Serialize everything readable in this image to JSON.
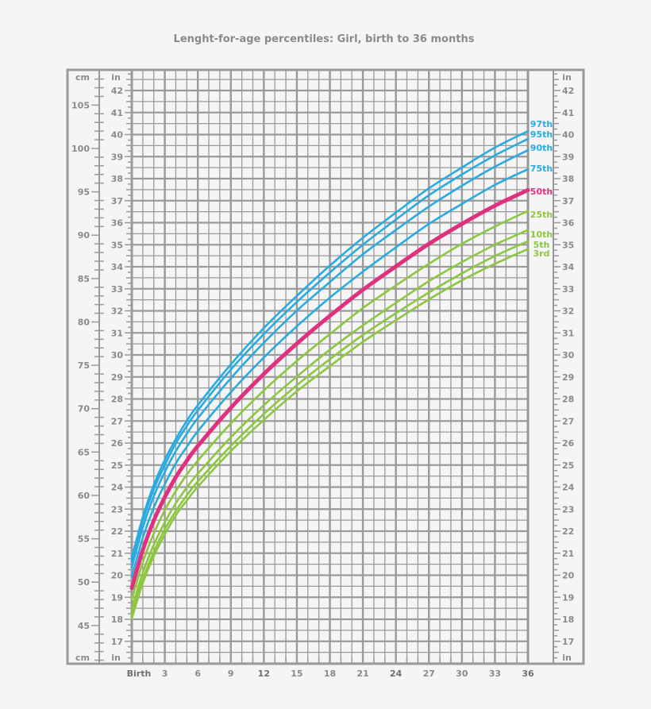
{
  "chart_data": {
    "type": "line",
    "title": "Lenght-for-age percentiles: Girl, birth to 36 months",
    "left_units": {
      "outer": "cm",
      "inner": "in"
    },
    "right_units": "in",
    "x_tick_labels": [
      "Birth",
      "3",
      "6",
      "9",
      "12",
      "15",
      "18",
      "21",
      "24",
      "27",
      "30",
      "33",
      "36"
    ],
    "x_range_months": [
      0,
      36
    ],
    "y_range_in": [
      16,
      43
    ],
    "cm_tick_labels": [
      "45",
      "50",
      "55",
      "60",
      "65",
      "70",
      "75",
      "80",
      "85",
      "90",
      "95",
      "100",
      "105"
    ],
    "in_tick_labels": [
      "17",
      "18",
      "19",
      "20",
      "21",
      "22",
      "23",
      "24",
      "25",
      "26",
      "27",
      "28",
      "29",
      "30",
      "31",
      "32",
      "33",
      "34",
      "35",
      "36",
      "37",
      "38",
      "39",
      "40",
      "41",
      "42"
    ],
    "grid": true,
    "x": [
      0,
      1,
      2,
      3,
      4,
      5,
      6,
      9,
      12,
      15,
      18,
      21,
      24,
      27,
      30,
      33,
      36
    ],
    "y_unit": "cm",
    "series": [
      {
        "name": "97th",
        "color": "#29abe2",
        "values": [
          52.8,
          57.5,
          61.2,
          64.1,
          66.5,
          68.6,
          70.4,
          75.1,
          79.3,
          83.0,
          86.5,
          89.7,
          92.6,
          95.4,
          97.8,
          100.1,
          102.0
        ]
      },
      {
        "name": "95th",
        "color": "#29abe2",
        "values": [
          52.4,
          57.1,
          60.7,
          63.5,
          66.0,
          68.0,
          69.8,
          74.5,
          78.6,
          82.3,
          85.7,
          88.9,
          91.8,
          94.6,
          97.0,
          99.2,
          101.1
        ]
      },
      {
        "name": "90th",
        "color": "#29abe2",
        "values": [
          51.7,
          56.3,
          59.9,
          62.7,
          65.1,
          67.1,
          68.9,
          73.5,
          77.6,
          81.3,
          84.6,
          87.8,
          90.6,
          93.3,
          95.7,
          97.9,
          99.8
        ]
      },
      {
        "name": "75th",
        "color": "#29abe2",
        "values": [
          50.6,
          55.1,
          58.6,
          61.3,
          63.7,
          65.6,
          67.4,
          71.9,
          75.9,
          79.5,
          82.8,
          85.8,
          88.6,
          91.3,
          93.6,
          95.8,
          97.6
        ]
      },
      {
        "name": "50th",
        "color": "#e0317e",
        "values": [
          49.3,
          53.7,
          57.1,
          59.8,
          62.1,
          64.0,
          65.7,
          70.1,
          74.0,
          77.5,
          80.7,
          83.7,
          86.4,
          89.0,
          91.3,
          93.4,
          95.2
        ]
      },
      {
        "name": "25th",
        "color": "#8dc63f",
        "values": [
          48.0,
          52.3,
          55.6,
          58.3,
          60.5,
          62.4,
          64.0,
          68.3,
          72.1,
          75.5,
          78.6,
          81.6,
          84.2,
          86.7,
          89.0,
          91.0,
          92.8
        ]
      },
      {
        "name": "10th",
        "color": "#8dc63f",
        "values": [
          46.9,
          51.1,
          54.3,
          56.9,
          59.1,
          60.9,
          62.5,
          66.7,
          70.4,
          73.7,
          76.8,
          79.6,
          82.2,
          84.7,
          86.9,
          88.9,
          90.6
        ]
      },
      {
        "name": "5th",
        "color": "#8dc63f",
        "values": [
          46.2,
          50.3,
          53.5,
          56.1,
          58.2,
          60.0,
          61.6,
          65.7,
          69.4,
          72.7,
          75.7,
          78.5,
          81.0,
          83.4,
          85.6,
          87.6,
          89.3
        ]
      },
      {
        "name": "3rd",
        "color": "#8dc63f",
        "values": [
          45.8,
          49.9,
          53.0,
          55.5,
          57.7,
          59.4,
          61.0,
          65.1,
          68.7,
          72.0,
          74.9,
          77.7,
          80.2,
          82.6,
          84.8,
          86.7,
          88.4
        ]
      }
    ]
  }
}
